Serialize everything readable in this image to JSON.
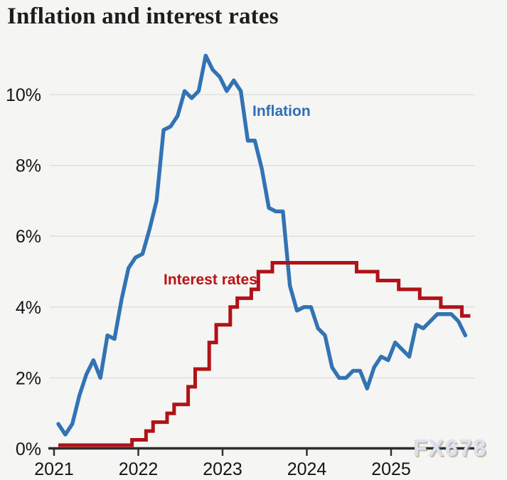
{
  "title": "Inflation and interest rates",
  "watermark": "FX678",
  "chart_data": {
    "type": "line",
    "title": "Inflation and interest rates",
    "grid": "horizontal",
    "legend_position": "inline-labels-on-plot",
    "x_axis": {
      "tick_labels": [
        "2021",
        "2022",
        "2023",
        "2024",
        "2025"
      ],
      "start": "2021-01",
      "frequency": "monthly"
    },
    "y_axis": {
      "tick_labels": [
        "0%",
        "2%",
        "4%",
        "6%",
        "8%",
        "10%"
      ],
      "unit": "%",
      "ylim": [
        0,
        11.5
      ]
    },
    "series": [
      {
        "name": "Inflation",
        "label": "Inflation",
        "color": "#3273b4",
        "label_color": "#2f6eb8",
        "line_style": "line",
        "values": [
          0.7,
          0.4,
          0.7,
          1.5,
          2.1,
          2.5,
          2.0,
          3.2,
          3.1,
          4.2,
          5.1,
          5.4,
          5.5,
          6.2,
          7.0,
          9.0,
          9.1,
          9.4,
          10.1,
          9.9,
          10.1,
          11.1,
          10.7,
          10.5,
          10.1,
          10.4,
          10.1,
          8.7,
          8.7,
          7.9,
          6.8,
          6.7,
          6.7,
          4.6,
          3.9,
          4.0,
          4.0,
          3.4,
          3.2,
          2.3,
          2.0,
          2.0,
          2.2,
          2.2,
          1.7,
          2.3,
          2.6,
          2.5,
          3.0,
          2.8,
          2.6,
          3.5,
          3.4,
          3.6,
          3.8,
          3.8,
          3.8,
          3.6,
          3.2
        ]
      },
      {
        "name": "Interest rates",
        "label": "Interest rates",
        "color": "#b01217",
        "label_color": "#bb1114",
        "line_style": "step",
        "values": [
          0.1,
          0.1,
          0.1,
          0.1,
          0.1,
          0.1,
          0.1,
          0.1,
          0.1,
          0.1,
          0.1,
          0.25,
          0.25,
          0.5,
          0.75,
          0.75,
          1.0,
          1.25,
          1.25,
          1.75,
          2.25,
          2.25,
          3.0,
          3.5,
          3.5,
          4.0,
          4.25,
          4.25,
          4.5,
          5.0,
          5.0,
          5.25,
          5.25,
          5.25,
          5.25,
          5.25,
          5.25,
          5.25,
          5.25,
          5.25,
          5.25,
          5.25,
          5.25,
          5.0,
          5.0,
          5.0,
          4.75,
          4.75,
          4.75,
          4.5,
          4.5,
          4.5,
          4.25,
          4.25,
          4.25,
          4.0,
          4.0,
          4.0,
          3.75
        ]
      }
    ]
  }
}
